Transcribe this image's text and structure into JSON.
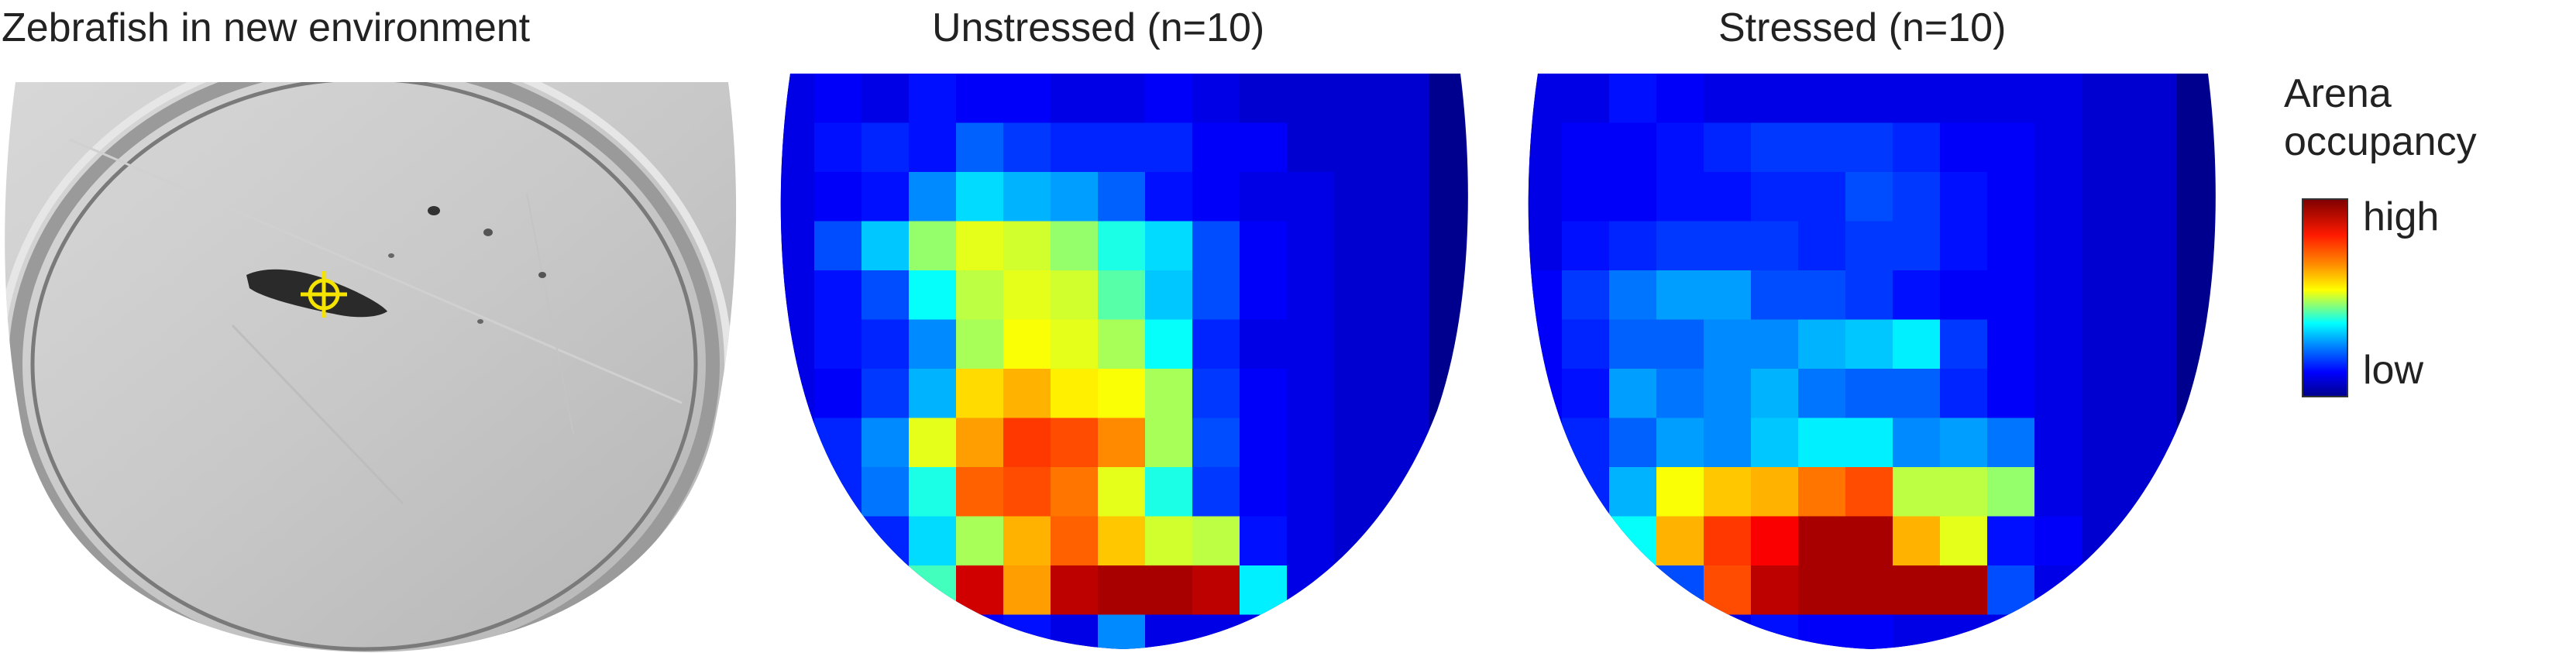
{
  "panels": [
    {
      "id": "photo",
      "title": "Zebrafish in new environment",
      "cell_values": []
    },
    {
      "id": "unstressed",
      "title": "Unstressed (n=10)",
      "cell_values": [
        [
          0.1,
          0.12,
          0.1,
          0.14,
          0.12,
          0.12,
          0.1,
          0.1,
          0.12,
          0.1,
          0.08,
          0.08,
          0.08,
          0.08
        ],
        [
          0.1,
          0.14,
          0.16,
          0.14,
          0.22,
          0.18,
          0.16,
          0.16,
          0.16,
          0.12,
          0.12,
          0.08,
          0.08,
          0.08
        ],
        [
          0.1,
          0.12,
          0.14,
          0.26,
          0.34,
          0.3,
          0.28,
          0.22,
          0.14,
          0.12,
          0.1,
          0.1,
          0.08,
          0.08
        ],
        [
          0.1,
          0.2,
          0.32,
          0.52,
          0.6,
          0.58,
          0.52,
          0.4,
          0.34,
          0.2,
          0.12,
          0.1,
          0.08,
          0.08
        ],
        [
          0.1,
          0.14,
          0.2,
          0.38,
          0.56,
          0.6,
          0.58,
          0.46,
          0.32,
          0.2,
          0.12,
          0.1,
          0.08,
          0.08
        ],
        [
          0.1,
          0.14,
          0.16,
          0.26,
          0.54,
          0.62,
          0.6,
          0.54,
          0.38,
          0.16,
          0.1,
          0.1,
          0.08,
          0.08
        ],
        [
          0.1,
          0.12,
          0.18,
          0.3,
          0.66,
          0.7,
          0.64,
          0.62,
          0.54,
          0.18,
          0.12,
          0.1,
          0.08,
          0.08
        ],
        [
          0.12,
          0.16,
          0.26,
          0.6,
          0.72,
          0.82,
          0.8,
          0.74,
          0.54,
          0.2,
          0.12,
          0.1,
          0.08,
          0.08
        ],
        [
          0.12,
          0.16,
          0.24,
          0.4,
          0.78,
          0.8,
          0.76,
          0.6,
          0.4,
          0.18,
          0.12,
          0.1,
          0.08,
          0.08
        ],
        [
          0.12,
          0.12,
          0.16,
          0.34,
          0.54,
          0.7,
          0.78,
          0.68,
          0.58,
          0.56,
          0.14,
          0.1,
          0.08,
          0.08
        ],
        [
          0.1,
          0.1,
          0.12,
          0.44,
          0.92,
          0.72,
          0.94,
          0.96,
          0.96,
          0.94,
          0.36,
          0.1,
          0.08,
          0.08
        ],
        [
          0.1,
          0.1,
          0.1,
          0.1,
          0.12,
          0.14,
          0.1,
          0.26,
          0.1,
          0.1,
          0.1,
          0.08,
          0.08,
          0.08
        ]
      ]
    },
    {
      "id": "stressed",
      "title": "Stressed (n=10)",
      "cell_values": [
        [
          0.1,
          0.1,
          0.14,
          0.12,
          0.1,
          0.1,
          0.1,
          0.1,
          0.1,
          0.1,
          0.1,
          0.1,
          0.08,
          0.08
        ],
        [
          0.1,
          0.12,
          0.12,
          0.14,
          0.16,
          0.18,
          0.18,
          0.18,
          0.16,
          0.12,
          0.12,
          0.1,
          0.08,
          0.08
        ],
        [
          0.1,
          0.12,
          0.12,
          0.14,
          0.14,
          0.16,
          0.16,
          0.2,
          0.18,
          0.14,
          0.12,
          0.1,
          0.08,
          0.08
        ],
        [
          0.1,
          0.14,
          0.16,
          0.18,
          0.18,
          0.18,
          0.16,
          0.18,
          0.18,
          0.14,
          0.12,
          0.1,
          0.08,
          0.08
        ],
        [
          0.12,
          0.18,
          0.24,
          0.28,
          0.28,
          0.2,
          0.2,
          0.18,
          0.14,
          0.12,
          0.12,
          0.1,
          0.08,
          0.08
        ],
        [
          0.12,
          0.16,
          0.22,
          0.22,
          0.26,
          0.26,
          0.3,
          0.32,
          0.36,
          0.18,
          0.12,
          0.1,
          0.08,
          0.08
        ],
        [
          0.12,
          0.14,
          0.28,
          0.24,
          0.26,
          0.3,
          0.24,
          0.22,
          0.22,
          0.16,
          0.12,
          0.1,
          0.08,
          0.08
        ],
        [
          0.12,
          0.16,
          0.22,
          0.28,
          0.26,
          0.32,
          0.36,
          0.36,
          0.26,
          0.28,
          0.24,
          0.1,
          0.08,
          0.08
        ],
        [
          0.1,
          0.16,
          0.3,
          0.62,
          0.68,
          0.7,
          0.76,
          0.8,
          0.56,
          0.56,
          0.52,
          0.1,
          0.08,
          0.08
        ],
        [
          0.1,
          0.12,
          0.38,
          0.7,
          0.82,
          0.88,
          0.96,
          0.96,
          0.7,
          0.6,
          0.14,
          0.12,
          0.08,
          0.08
        ],
        [
          0.1,
          0.1,
          0.12,
          0.2,
          0.8,
          0.94,
          0.96,
          0.96,
          0.96,
          0.96,
          0.2,
          0.1,
          0.08,
          0.08
        ],
        [
          0.1,
          0.1,
          0.1,
          0.12,
          0.1,
          0.14,
          0.12,
          0.12,
          0.1,
          0.1,
          0.1,
          0.08,
          0.08,
          0.08
        ]
      ]
    }
  ],
  "legend": {
    "title_line1": "Arena",
    "title_line2": "occupancy",
    "high_label": "high",
    "low_label": "low",
    "colormap": "jet"
  }
}
